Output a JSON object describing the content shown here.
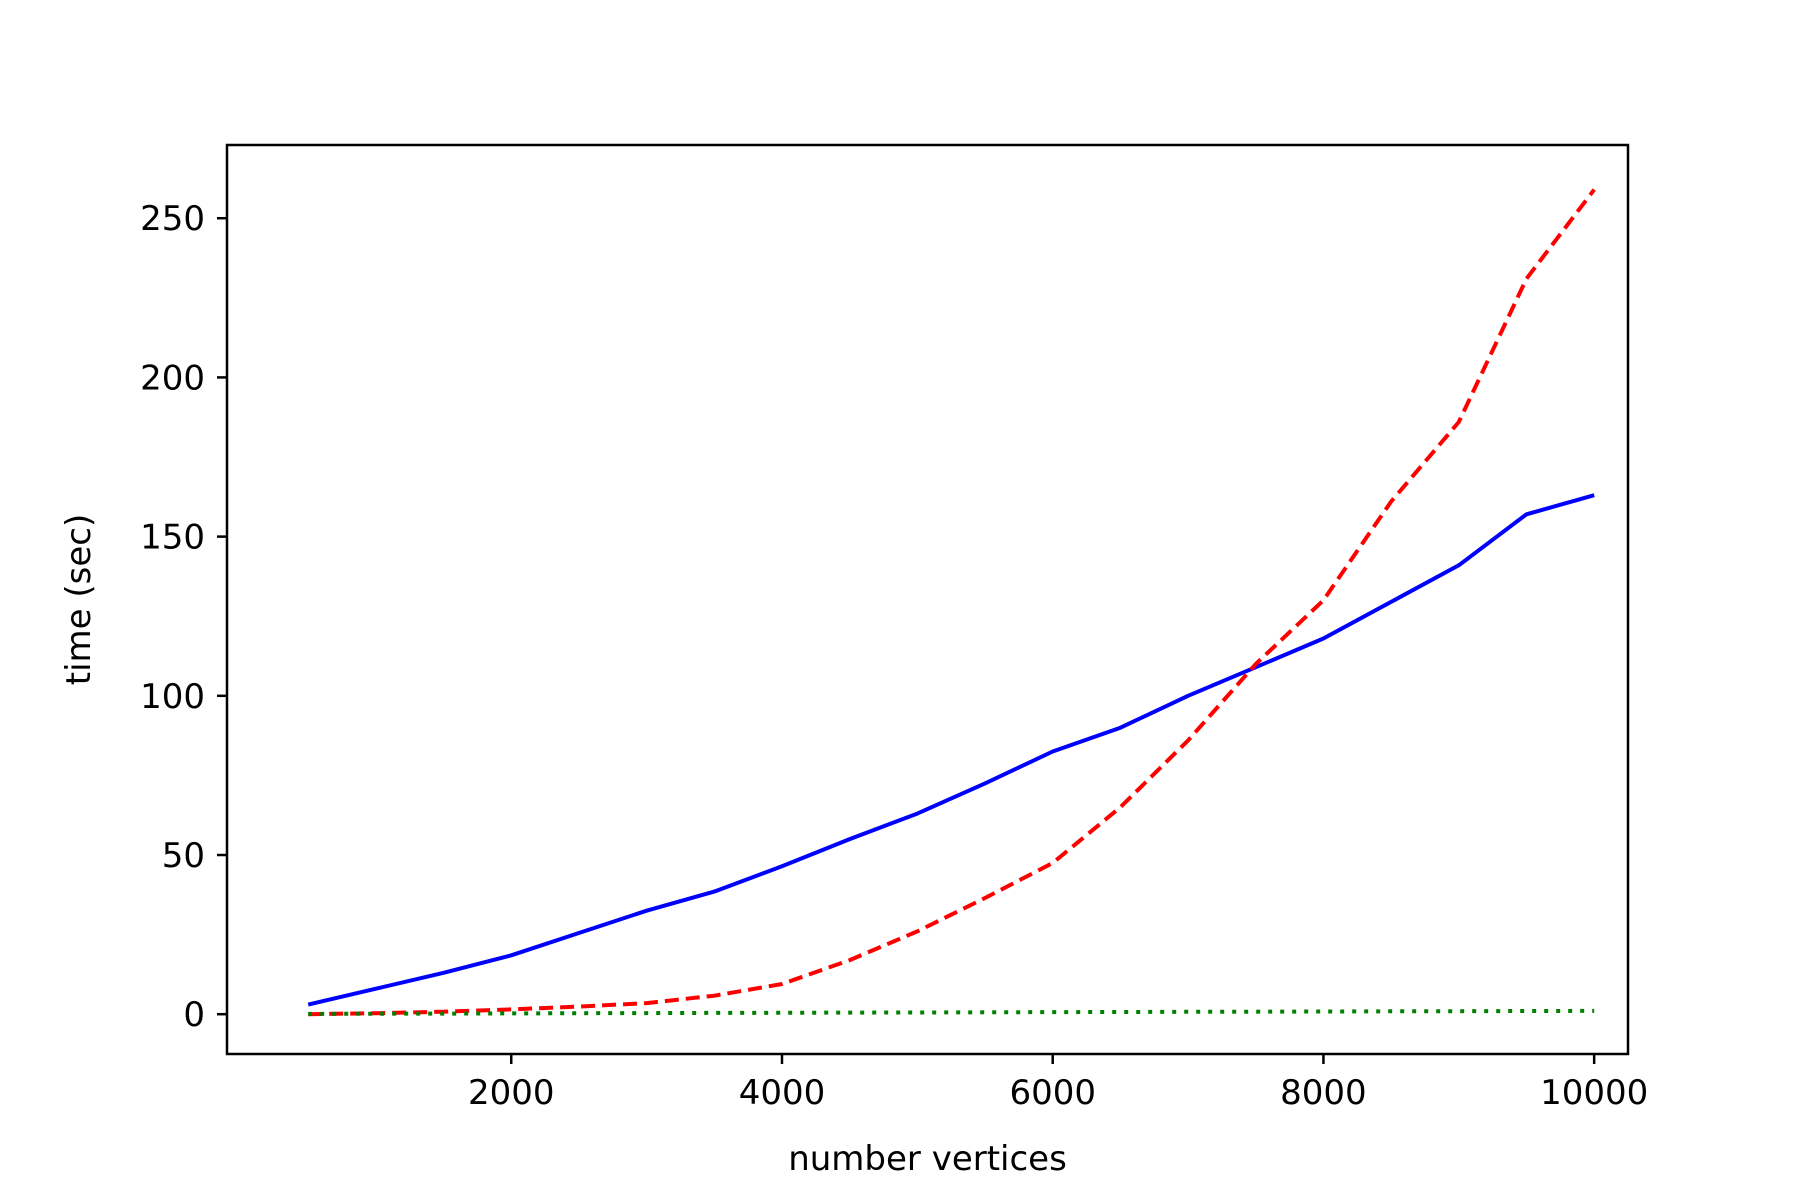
{
  "chart_data": {
    "type": "line",
    "title": "",
    "xlabel": "number vertices",
    "ylabel": "time (sec)",
    "xlim": [
      -100,
      10250
    ],
    "ylim": [
      -12.5,
      273
    ],
    "xticks": [
      2000,
      4000,
      6000,
      8000,
      10000
    ],
    "yticks": [
      0,
      50,
      100,
      150,
      200,
      250
    ],
    "grid": false,
    "legend": "none",
    "series": [
      {
        "color": "#0000ff",
        "linestyle": "solid",
        "x": [
          500,
          1000,
          1500,
          2000,
          2500,
          3000,
          3500,
          4000,
          4500,
          5000,
          5500,
          6000,
          6500,
          7000,
          7500,
          8000,
          8500,
          9000,
          9500,
          10000
        ],
        "y": [
          3,
          8,
          13,
          18.5,
          25.5,
          32.5,
          38.5,
          46.5,
          55,
          63,
          72.5,
          82.5,
          90,
          100,
          109,
          118,
          129.5,
          141,
          157,
          163
        ]
      },
      {
        "color": "#ff0000",
        "linestyle": "dashed",
        "x": [
          500,
          1000,
          1500,
          2000,
          2500,
          3000,
          3500,
          4000,
          4500,
          5000,
          5500,
          6000,
          6500,
          7000,
          7500,
          8000,
          8500,
          9000,
          9500,
          10000
        ],
        "y": [
          0,
          0.3,
          0.8,
          1.5,
          2.4,
          3.5,
          5.8,
          9.5,
          17,
          26,
          36.5,
          47.5,
          65,
          86,
          110,
          130,
          161,
          186,
          231,
          259
        ]
      },
      {
        "color": "#008000",
        "linestyle": "dotted",
        "x": [
          500,
          1000,
          1500,
          2000,
          2500,
          3000,
          3500,
          4000,
          4500,
          5000,
          5500,
          6000,
          6500,
          7000,
          7500,
          8000,
          8500,
          9000,
          9500,
          10000
        ],
        "y": [
          0.1,
          0.15,
          0.2,
          0.25,
          0.3,
          0.35,
          0.4,
          0.45,
          0.5,
          0.55,
          0.6,
          0.65,
          0.7,
          0.75,
          0.8,
          0.85,
          0.9,
          0.95,
          1.0,
          1.05
        ]
      }
    ]
  }
}
